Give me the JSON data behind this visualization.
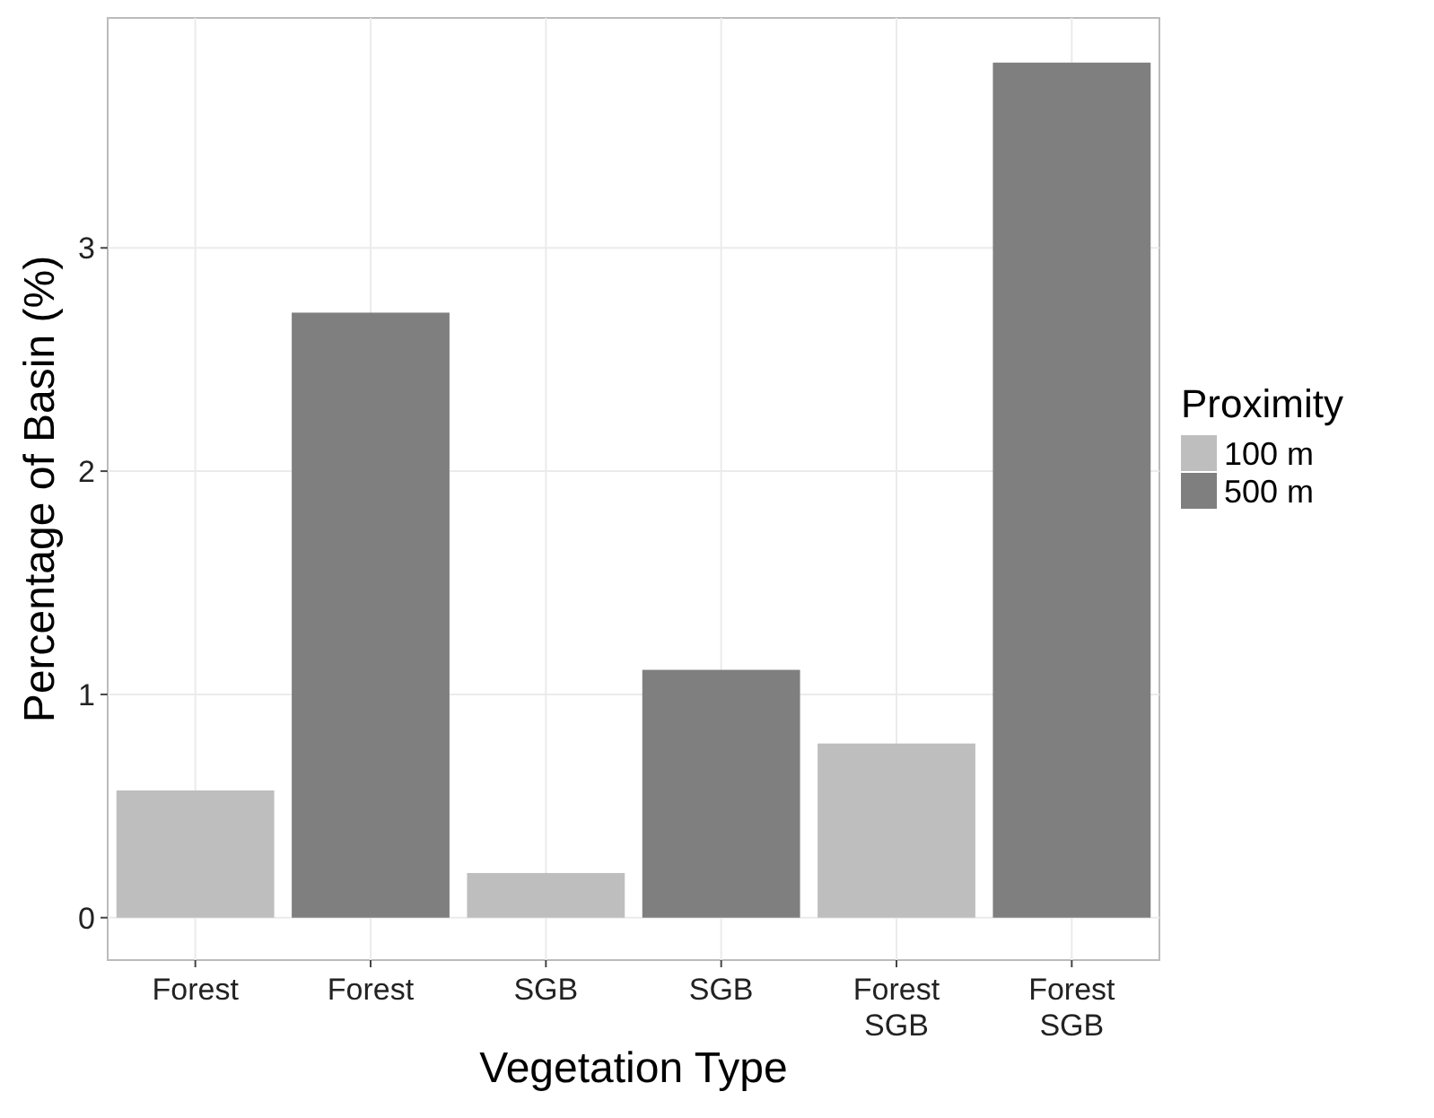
{
  "chart_data": {
    "type": "bar",
    "xlabel": "Vegetation Type",
    "ylabel": "Percentage of Basin (%)",
    "legend_title": "Proximity",
    "categories": [
      "Forest",
      "Forest",
      "SGB",
      "SGB",
      "Forest\nSGB",
      "Forest\nSGB"
    ],
    "series": [
      {
        "name": "100 m",
        "color": "#bebebe",
        "values": [
          0.57,
          null,
          0.2,
          null,
          0.78,
          null
        ]
      },
      {
        "name": "500 m",
        "color": "#7f7f7f",
        "values": [
          null,
          2.71,
          null,
          1.11,
          null,
          3.83
        ]
      }
    ],
    "ylim": [
      -0.19,
      4.03
    ],
    "yticks": [
      0,
      1,
      2,
      3
    ],
    "grid": true,
    "legend": "right"
  }
}
